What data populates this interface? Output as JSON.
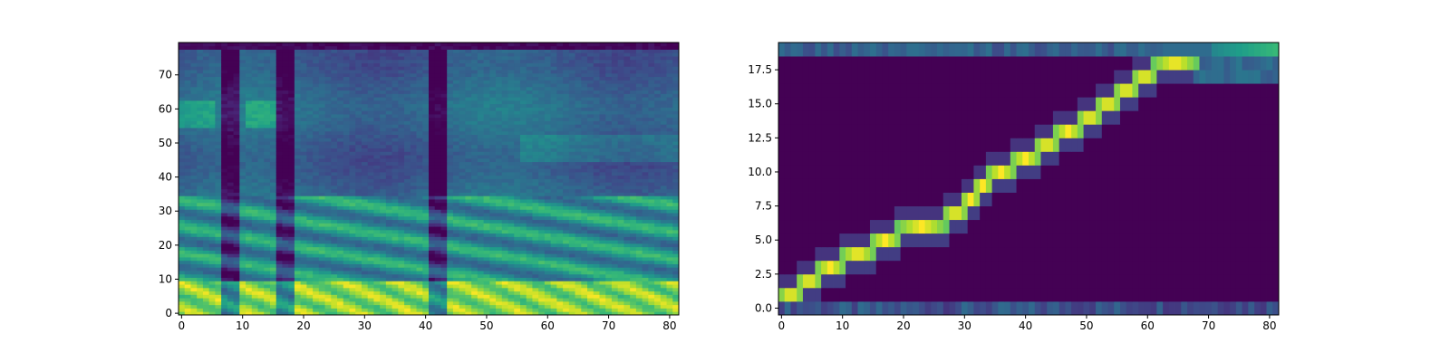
{
  "figure": {
    "background": "#ffffff"
  },
  "chart_data": [
    {
      "type": "heatmap",
      "title": "",
      "xlabel": "",
      "ylabel": "",
      "colormap": "viridis",
      "grid": false,
      "n_cols": 82,
      "n_rows": 80,
      "xlim": [
        -0.5,
        81.5
      ],
      "ylim": [
        -0.5,
        79.5
      ],
      "xticks": [
        0,
        10,
        20,
        30,
        40,
        50,
        60,
        70,
        80
      ],
      "xtick_labels": [
        "0",
        "10",
        "20",
        "30",
        "40",
        "50",
        "60",
        "70",
        "80"
      ],
      "yticks": [
        0,
        10,
        20,
        30,
        40,
        50,
        60,
        70
      ],
      "ytick_labels": [
        "0",
        "10",
        "20",
        "30",
        "40",
        "50",
        "60",
        "70"
      ],
      "description_values": "mel spectrogram: bright low-frequency bands (rows 0-10) across most frames, harmonic bands up to ~35, dark gaps at columns ~8, ~17, ~42, top row dark"
    },
    {
      "type": "heatmap",
      "title": "",
      "xlabel": "",
      "ylabel": "",
      "colormap": "viridis",
      "grid": false,
      "n_cols": 82,
      "n_rows": 20,
      "xlim": [
        -0.5,
        81.5
      ],
      "ylim": [
        -0.5,
        19.5
      ],
      "xticks": [
        0,
        10,
        20,
        30,
        40,
        50,
        60,
        70,
        80
      ],
      "xtick_labels": [
        "0",
        "10",
        "20",
        "30",
        "40",
        "50",
        "60",
        "70",
        "80"
      ],
      "yticks": [
        0.0,
        2.5,
        5.0,
        7.5,
        10.0,
        12.5,
        15.0,
        17.5
      ],
      "ytick_labels": [
        "0.0",
        "2.5",
        "5.0",
        "7.5",
        "10.0",
        "12.5",
        "15.0",
        "17.5"
      ],
      "alignment_path": [
        {
          "row": 1,
          "x": [
            0,
            3
          ]
        },
        {
          "row": 2,
          "x": [
            3,
            6
          ]
        },
        {
          "row": 3,
          "x": [
            6,
            10
          ]
        },
        {
          "row": 4,
          "x": [
            10,
            15
          ]
        },
        {
          "row": 5,
          "x": [
            15,
            19
          ]
        },
        {
          "row": 6,
          "x": [
            19,
            27
          ]
        },
        {
          "row": 7,
          "x": [
            27,
            30
          ]
        },
        {
          "row": 8,
          "x": [
            30,
            32
          ]
        },
        {
          "row": 9,
          "x": [
            32,
            34
          ]
        },
        {
          "row": 10,
          "x": [
            34,
            38
          ]
        },
        {
          "row": 11,
          "x": [
            38,
            42
          ]
        },
        {
          "row": 12,
          "x": [
            42,
            45
          ]
        },
        {
          "row": 13,
          "x": [
            45,
            49
          ]
        },
        {
          "row": 14,
          "x": [
            49,
            52
          ]
        },
        {
          "row": 15,
          "x": [
            52,
            55
          ]
        },
        {
          "row": 16,
          "x": [
            55,
            58
          ]
        },
        {
          "row": 17,
          "x": [
            58,
            61
          ]
        },
        {
          "row": 18,
          "x": [
            61,
            68
          ]
        }
      ],
      "bright_rows": [
        0,
        19
      ]
    }
  ]
}
